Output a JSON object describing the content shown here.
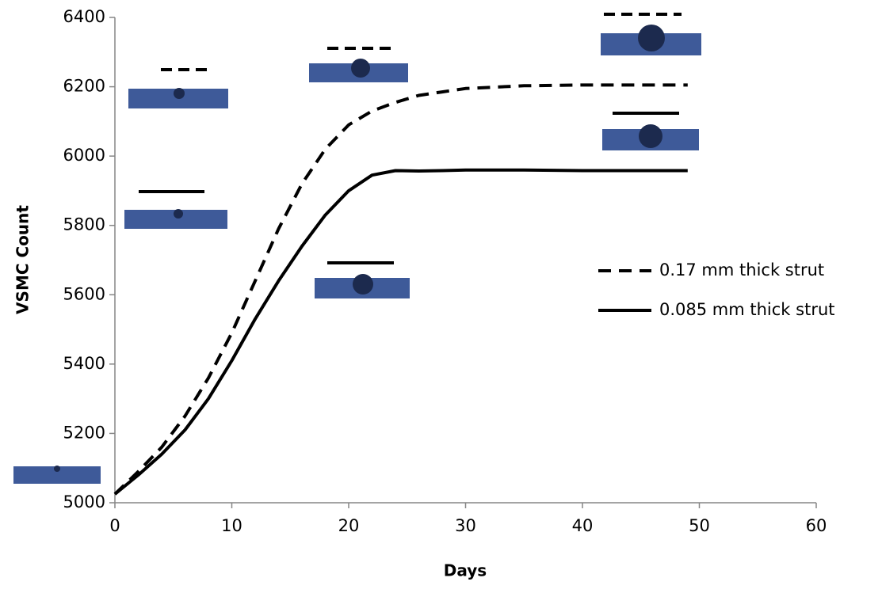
{
  "chart_data": {
    "type": "line",
    "x_label": "Days",
    "y_label": "VSMC Count",
    "x": [
      0,
      2,
      4,
      6,
      8,
      10,
      12,
      14,
      16,
      18,
      20,
      22,
      24,
      26,
      28,
      30,
      35,
      40,
      45,
      49
    ],
    "series": [
      {
        "name": "0.17 mm thick strut",
        "color": "#000000",
        "style": "dashed",
        "values": [
          5025,
          5090,
          5160,
          5250,
          5360,
          5490,
          5640,
          5790,
          5920,
          6020,
          6090,
          6130,
          6155,
          6175,
          6185,
          6195,
          6203,
          6205,
          6205,
          6205
        ]
      },
      {
        "name": "0.085 mm thick strut",
        "color": "#000000",
        "style": "solid",
        "values": [
          5025,
          5080,
          5140,
          5210,
          5300,
          5410,
          5530,
          5640,
          5740,
          5830,
          5900,
          5945,
          5958,
          5957,
          5958,
          5960,
          5960,
          5958,
          5958,
          5958
        ]
      }
    ],
    "xlim": [
      0,
      60
    ],
    "xticks": [
      0,
      10,
      20,
      30,
      40,
      50,
      60
    ],
    "ylim": [
      5000,
      6400
    ],
    "yticks": [
      5000,
      5200,
      5400,
      5600,
      5800,
      6000,
      6200,
      6400
    ],
    "grid": false,
    "legend": "right"
  }
}
